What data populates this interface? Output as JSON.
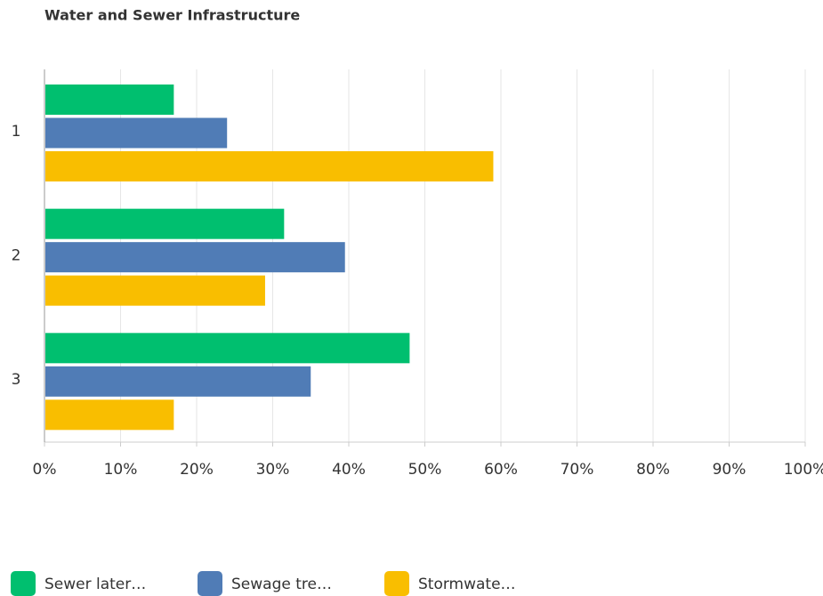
{
  "chart_data": {
    "type": "hbar",
    "title": "Water and Sewer Infrastructure",
    "categories": [
      "1",
      "2",
      "3"
    ],
    "series": [
      {
        "name": "Sewer later…",
        "color": "#00bf6f",
        "values": [
          17,
          31.5,
          48
        ]
      },
      {
        "name": "Sewage tre…",
        "color": "#507cb6",
        "values": [
          24,
          39.5,
          35
        ]
      },
      {
        "name": "Stormwate…",
        "color": "#f9be00",
        "values": [
          59,
          29,
          17
        ]
      }
    ],
    "xlim": [
      0,
      100
    ],
    "xticks": [
      {
        "value": 0,
        "label": "0%"
      },
      {
        "value": 10,
        "label": "10%"
      },
      {
        "value": 20,
        "label": "20%"
      },
      {
        "value": 30,
        "label": "30%"
      },
      {
        "value": 40,
        "label": "40%"
      },
      {
        "value": 50,
        "label": "50%"
      },
      {
        "value": 60,
        "label": "60%"
      },
      {
        "value": 70,
        "label": "70%"
      },
      {
        "value": 80,
        "label": "80%"
      },
      {
        "value": 90,
        "label": "90%"
      },
      {
        "value": 100,
        "label": "100%"
      }
    ],
    "grid": true,
    "legend": "bottom"
  }
}
